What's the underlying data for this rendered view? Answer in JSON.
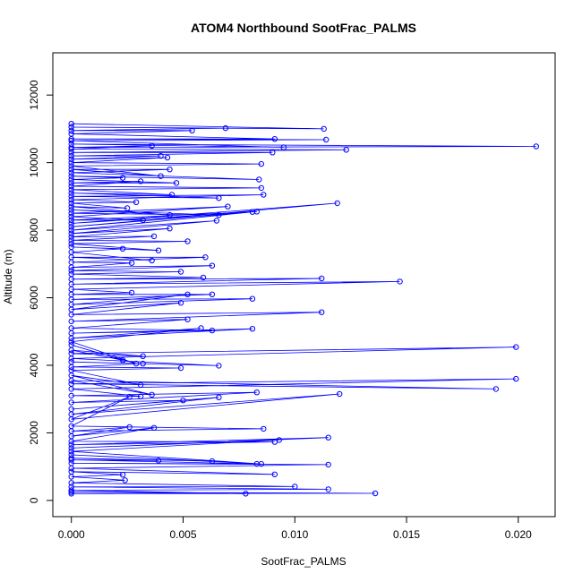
{
  "chart_data": {
    "type": "line",
    "title": "ATOM4 Northbound SootFrac_PALMS",
    "xlabel": "SootFrac_PALMS",
    "ylabel": "Altitude (m)",
    "x_ticks": [
      "0.000",
      "0.005",
      "0.010",
      "0.015",
      "0.020"
    ],
    "y_ticks": [
      "0",
      "2000",
      "4000",
      "6000",
      "8000",
      "10000",
      "12000"
    ],
    "x_tick_values": [
      0,
      0.005,
      0.01,
      0.015,
      0.02
    ],
    "y_tick_values": [
      0,
      2000,
      4000,
      6000,
      8000,
      10000,
      12000
    ],
    "xlim": [
      -0.00083,
      0.02165
    ],
    "ylim": [
      -480,
      13250
    ],
    "grid": false,
    "color": "#0000ff",
    "marker": "open-circle",
    "series": [
      {
        "points": [
          [
            0,
            200
          ],
          [
            0.0136,
            210
          ],
          [
            0,
            250
          ],
          [
            0.0078,
            200
          ],
          [
            0,
            300
          ],
          [
            0.0115,
            330
          ],
          [
            0,
            400
          ],
          [
            0.01,
            410
          ],
          [
            0,
            520
          ],
          [
            0.0024,
            600
          ],
          [
            0,
            700
          ],
          [
            0.0023,
            760
          ],
          [
            0,
            850
          ],
          [
            0.0091,
            770
          ],
          [
            0,
            950
          ],
          [
            0.0115,
            1060
          ],
          [
            0,
            1100
          ],
          [
            0.0083,
            1080
          ],
          [
            0,
            1200
          ],
          [
            0.0039,
            1180
          ],
          [
            0,
            1250
          ],
          [
            0.0063,
            1160
          ],
          [
            0,
            1350
          ],
          [
            0.0085,
            1080
          ],
          [
            0,
            1450
          ],
          [
            0.0093,
            1790
          ],
          [
            0,
            1550
          ],
          [
            0.0115,
            1860
          ],
          [
            0,
            1650
          ],
          [
            0.0091,
            1730
          ],
          [
            0,
            1750
          ],
          [
            0.0037,
            2150
          ],
          [
            0,
            1900
          ],
          [
            0.0026,
            2170
          ],
          [
            0,
            2050
          ],
          [
            0.0086,
            2120
          ],
          [
            0,
            2200
          ],
          [
            0.0026,
            3070
          ],
          [
            0,
            2400
          ],
          [
            0.012,
            3150
          ],
          [
            0,
            2550
          ],
          [
            0.0066,
            3050
          ],
          [
            0,
            2700
          ],
          [
            0.005,
            2960
          ],
          [
            0,
            2900
          ],
          [
            0.0083,
            3200
          ],
          [
            0,
            3100
          ],
          [
            0.0031,
            3080
          ],
          [
            0,
            3300
          ],
          [
            0.0199,
            3600
          ],
          [
            0,
            3450
          ],
          [
            0.019,
            3300
          ],
          [
            0,
            3550
          ],
          [
            0.0036,
            3130
          ],
          [
            0,
            3700
          ],
          [
            0.0031,
            3420
          ],
          [
            0,
            3850
          ],
          [
            0.0049,
            3920
          ],
          [
            0,
            3950
          ],
          [
            0.0032,
            4050
          ],
          [
            0,
            4100
          ],
          [
            0.0066,
            3990
          ],
          [
            0,
            4200
          ],
          [
            0.0199,
            4540
          ],
          [
            0,
            4350
          ],
          [
            0.0032,
            4270
          ],
          [
            0,
            4450
          ],
          [
            0.0023,
            4150
          ],
          [
            0,
            4600
          ],
          [
            0.0029,
            4050
          ],
          [
            0,
            4700
          ],
          [
            0.0058,
            5100
          ],
          [
            0,
            4800
          ],
          [
            0.0081,
            5080
          ],
          [
            0,
            4950
          ],
          [
            0.0063,
            5030
          ],
          [
            0,
            5100
          ],
          [
            0.0052,
            5360
          ],
          [
            0,
            5300
          ],
          [
            0.0112,
            5570
          ],
          [
            0,
            5500
          ],
          [
            0.0049,
            5850
          ],
          [
            0,
            5650
          ],
          [
            0.0052,
            6100
          ],
          [
            0,
            5800
          ],
          [
            0.0081,
            5970
          ],
          [
            0,
            5950
          ],
          [
            0.0063,
            6100
          ],
          [
            0,
            6100
          ],
          [
            0.0027,
            6150
          ],
          [
            0,
            6250
          ],
          [
            0.0147,
            6480
          ],
          [
            0,
            6400
          ],
          [
            0.0112,
            6570
          ],
          [
            0,
            6550
          ],
          [
            0.0059,
            6600
          ],
          [
            0,
            6700
          ],
          [
            0.0049,
            6770
          ],
          [
            0,
            6800
          ],
          [
            0.0063,
            6950
          ],
          [
            0,
            6900
          ],
          [
            0.0027,
            7030
          ],
          [
            0,
            7050
          ],
          [
            0.006,
            7200
          ],
          [
            0,
            7200
          ],
          [
            0.0036,
            7100
          ],
          [
            0,
            7350
          ],
          [
            0.0023,
            7450
          ],
          [
            0,
            7500
          ],
          [
            0.0039,
            7400
          ],
          [
            0,
            7600
          ],
          [
            0.0052,
            7670
          ],
          [
            0,
            7700
          ],
          [
            0.0037,
            7820
          ],
          [
            0,
            7800
          ],
          [
            0.0044,
            8050
          ],
          [
            0,
            7900
          ],
          [
            0.0065,
            8280
          ],
          [
            0,
            8000
          ],
          [
            0.0081,
            8540
          ],
          [
            0,
            8100
          ],
          [
            0.0119,
            8800
          ],
          [
            0,
            8200
          ],
          [
            0.0083,
            8550
          ],
          [
            0,
            8300
          ],
          [
            0.0032,
            8300
          ],
          [
            0,
            8400
          ],
          [
            0.007,
            8700
          ],
          [
            0,
            8500
          ],
          [
            0.0066,
            8450
          ],
          [
            0,
            8600
          ],
          [
            0.0044,
            8450
          ],
          [
            0,
            8700
          ],
          [
            0.0025,
            8650
          ],
          [
            0,
            8800
          ],
          [
            0.0029,
            8830
          ],
          [
            0,
            8900
          ],
          [
            0.0086,
            9050
          ],
          [
            0,
            9000
          ],
          [
            0.0066,
            8950
          ],
          [
            0,
            9100
          ],
          [
            0.0045,
            9050
          ],
          [
            0,
            9200
          ],
          [
            0.0085,
            9250
          ],
          [
            0,
            9300
          ],
          [
            0.0031,
            9450
          ],
          [
            0,
            9400
          ],
          [
            0.0047,
            9400
          ],
          [
            0,
            9500
          ],
          [
            0.0023,
            9550
          ],
          [
            0,
            9600
          ],
          [
            0.0084,
            9500
          ],
          [
            0,
            9700
          ],
          [
            0.0044,
            9800
          ],
          [
            0,
            9800
          ],
          [
            0.004,
            9600
          ],
          [
            0,
            9900
          ],
          [
            0.0085,
            9960
          ],
          [
            0,
            10000
          ],
          [
            0.0043,
            10150
          ],
          [
            0,
            10100
          ],
          [
            0.004,
            10200
          ],
          [
            0,
            10200
          ],
          [
            0.009,
            10300
          ],
          [
            0,
            10300
          ],
          [
            0.0123,
            10380
          ],
          [
            0,
            10400
          ],
          [
            0.0036,
            10500
          ],
          [
            0,
            10450
          ],
          [
            0.0208,
            10480
          ],
          [
            0,
            10550
          ],
          [
            0.0095,
            10450
          ],
          [
            0,
            10650
          ],
          [
            0.0114,
            10680
          ],
          [
            0,
            10700
          ],
          [
            0.0091,
            10700
          ],
          [
            0,
            10850
          ],
          [
            0.0054,
            10950
          ],
          [
            0,
            10950
          ],
          [
            0.0069,
            11020
          ],
          [
            0,
            11050
          ],
          [
            0.0113,
            11000
          ],
          [
            0,
            11150
          ]
        ]
      }
    ]
  }
}
